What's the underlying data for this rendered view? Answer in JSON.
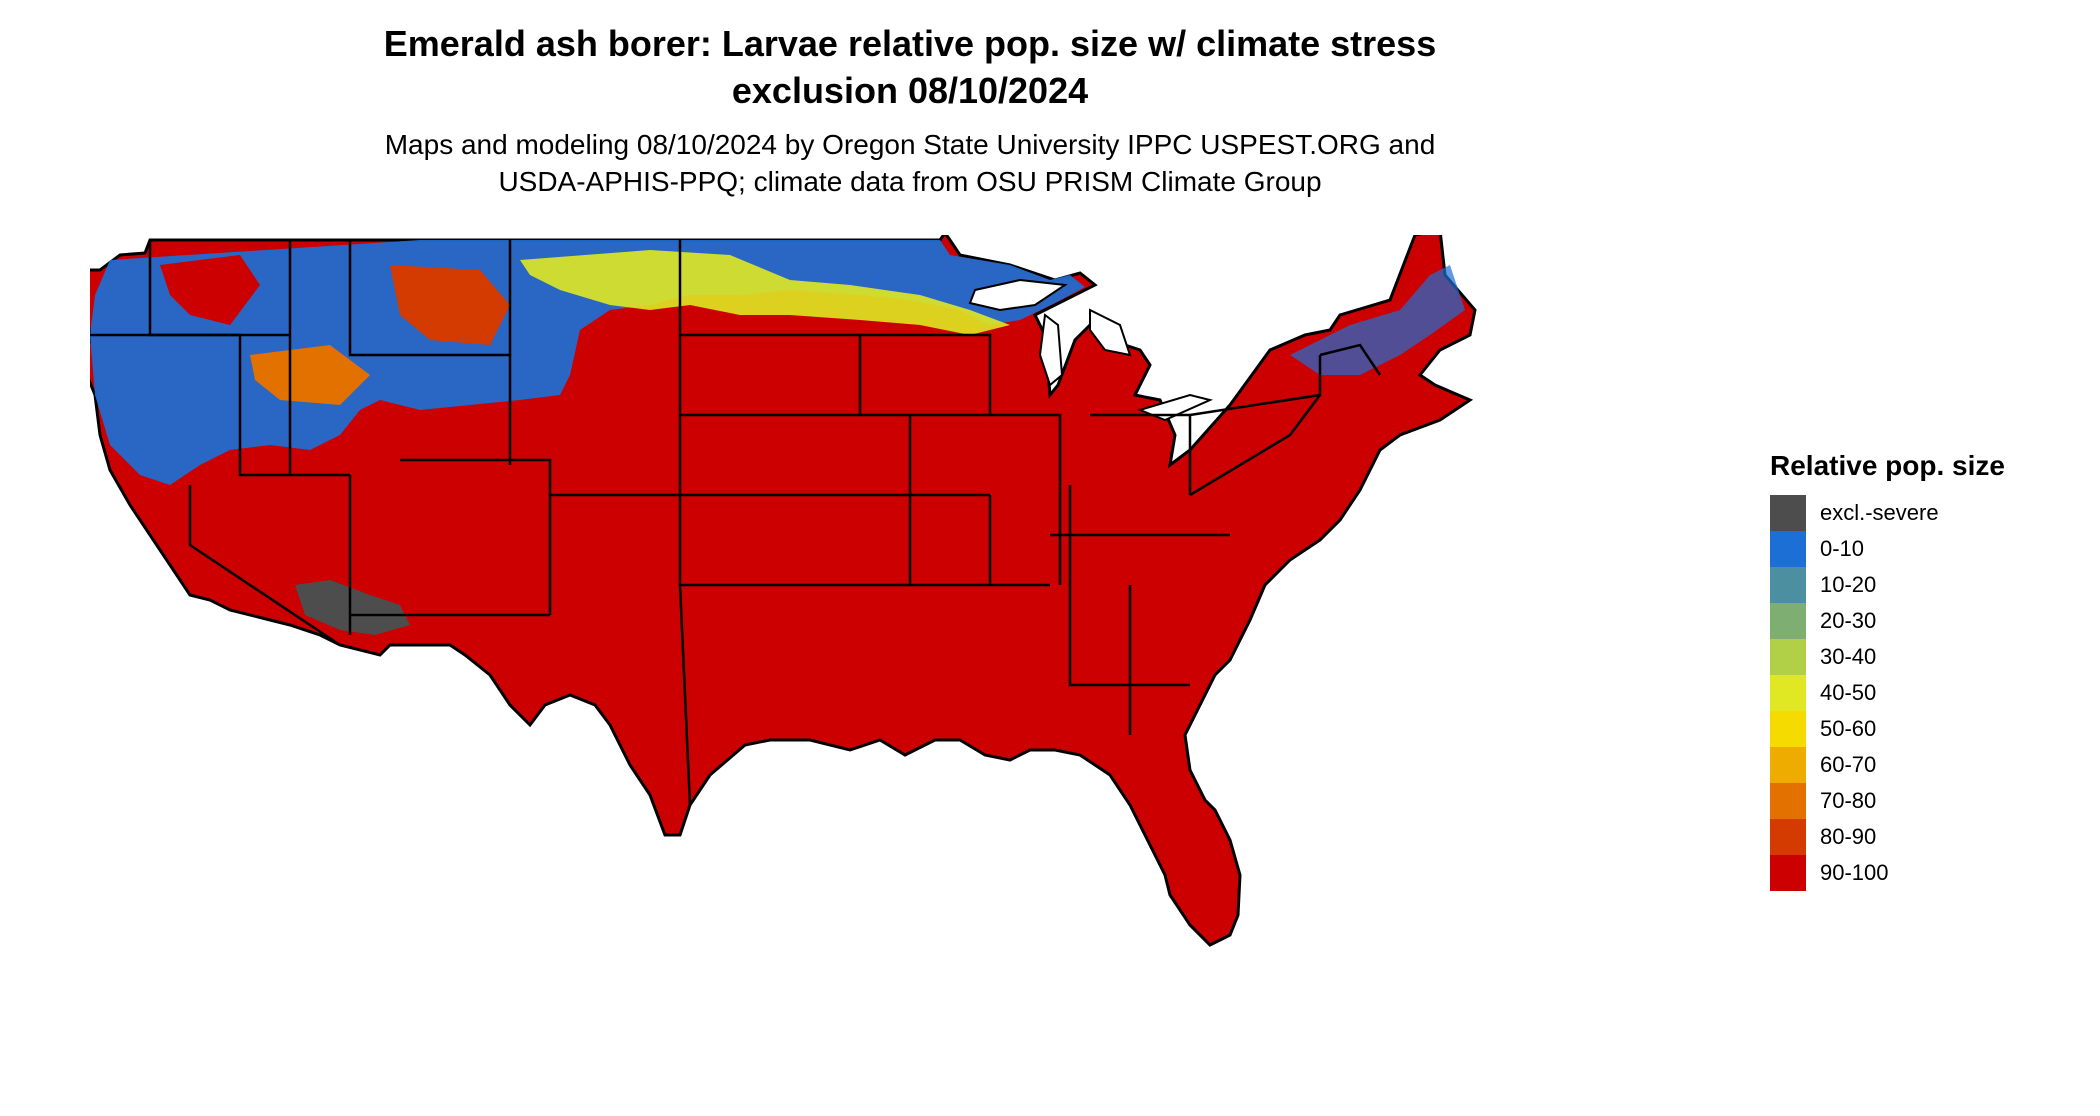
{
  "title": {
    "line1": "Emerald ash borer: Larvae relative pop. size w/ climate stress",
    "line2": "exclusion 08/10/2024"
  },
  "subtitle": {
    "line1": "Maps and modeling 08/10/2024 by Oregon State University IPPC USPEST.ORG and",
    "line2": "USDA-APHIS-PPQ; climate data from OSU PRISM Climate Group"
  },
  "legend": {
    "title": "Relative pop. size",
    "items": [
      {
        "label": "excl.-severe",
        "color": "#4d4d4d"
      },
      {
        "label": "0-10",
        "color": "#1c6fd4"
      },
      {
        "label": "10-20",
        "color": "#4c8fa0"
      },
      {
        "label": "20-30",
        "color": "#7fae73"
      },
      {
        "label": "30-40",
        "color": "#b2cf48"
      },
      {
        "label": "40-50",
        "color": "#dfe823"
      },
      {
        "label": "50-60",
        "color": "#f6db00"
      },
      {
        "label": "60-70",
        "color": "#eeab00"
      },
      {
        "label": "70-80",
        "color": "#e37100"
      },
      {
        "label": "80-90",
        "color": "#d43b00"
      },
      {
        "label": "90-100",
        "color": "#cc0000"
      }
    ]
  },
  "map": {
    "base_color": "#cc0000",
    "border_color": "#000000",
    "dominant_class": "90-100"
  }
}
